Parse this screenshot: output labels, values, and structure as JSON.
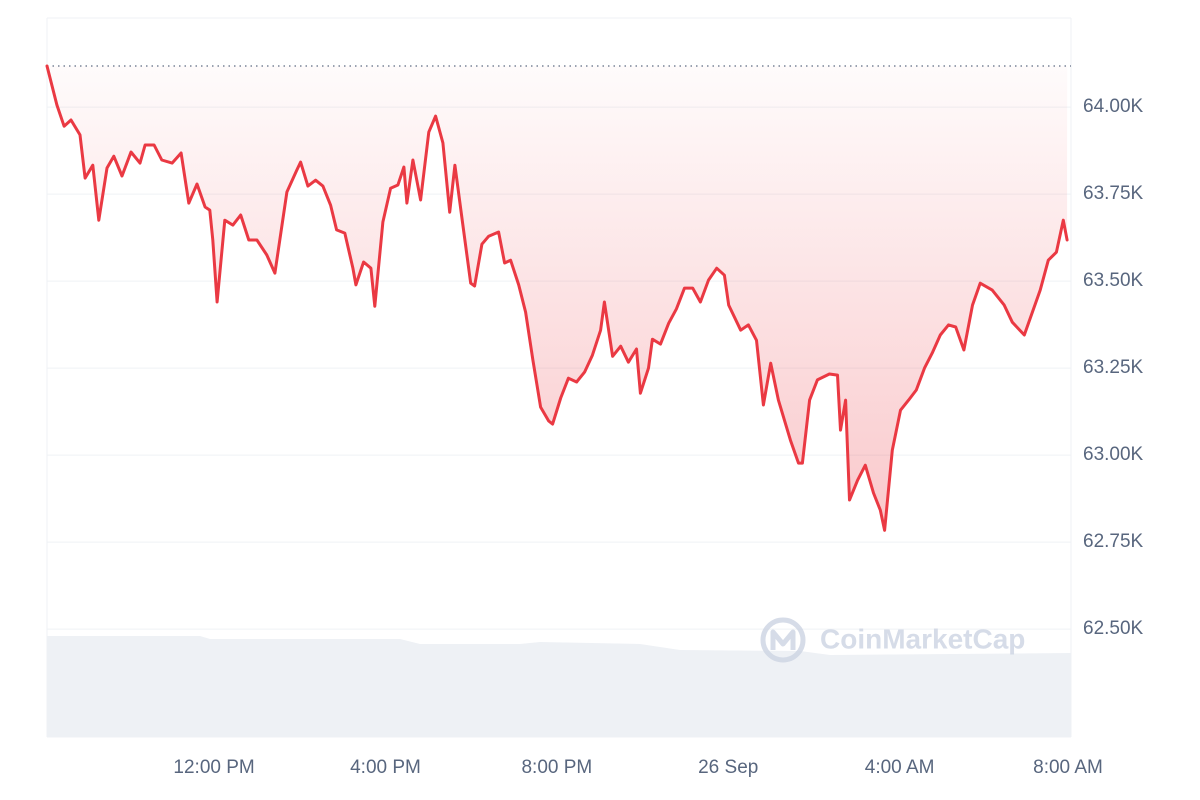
{
  "chart_data": {
    "type": "line",
    "color": "#ea3943",
    "grid": true,
    "watermark": "CoinMarketCap",
    "xlim": [
      8.1,
      32
    ],
    "ylim": [
      62190,
      64256
    ],
    "xticks": [
      {
        "value": 12,
        "label": "12:00 PM"
      },
      {
        "value": 16,
        "label": "4:00 PM"
      },
      {
        "value": 20,
        "label": "8:00 PM"
      },
      {
        "value": 24,
        "label": "26 Sep"
      },
      {
        "value": 28,
        "label": "4:00 AM"
      },
      {
        "value": 32,
        "label": "8:00 AM"
      }
    ],
    "yticks": [
      {
        "value": 64000,
        "label": "64.00K"
      },
      {
        "value": 63750,
        "label": "63.75K"
      },
      {
        "value": 63500,
        "label": "63.50K"
      },
      {
        "value": 63250,
        "label": "63.25K"
      },
      {
        "value": 63000,
        "label": "63.00K"
      },
      {
        "value": 62750,
        "label": "62.75K"
      },
      {
        "value": 62500,
        "label": "62.50K"
      }
    ],
    "x": [
      8.1,
      8.33,
      8.5,
      8.66,
      8.87,
      8.99,
      9.17,
      9.31,
      9.5,
      9.66,
      9.85,
      10.06,
      10.27,
      10.39,
      10.6,
      10.78,
      11.02,
      11.23,
      11.41,
      11.6,
      11.79,
      11.9,
      11.97,
      12.07,
      12.25,
      12.44,
      12.62,
      12.81,
      13.0,
      13.23,
      13.42,
      13.7,
      13.93,
      14.02,
      14.19,
      14.37,
      14.54,
      14.72,
      14.86,
      15.05,
      15.24,
      15.31,
      15.49,
      15.66,
      15.75,
      15.94,
      16.12,
      16.29,
      16.43,
      16.5,
      16.64,
      16.82,
      17.01,
      17.17,
      17.34,
      17.5,
      17.62,
      17.8,
      17.99,
      18.08,
      18.25,
      18.41,
      18.64,
      18.78,
      18.92,
      19.11,
      19.27,
      19.44,
      19.62,
      19.81,
      19.9,
      20.09,
      20.27,
      20.46,
      20.65,
      20.83,
      21.02,
      21.11,
      21.3,
      21.49,
      21.67,
      21.86,
      21.95,
      22.14,
      22.23,
      22.42,
      22.61,
      22.79,
      22.98,
      23.17,
      23.35,
      23.54,
      23.73,
      23.91,
      24.01,
      24.29,
      24.47,
      24.66,
      24.82,
      24.99,
      25.17,
      25.45,
      25.64,
      25.73,
      25.9,
      26.08,
      26.36,
      26.55,
      26.62,
      26.74,
      26.83,
      27.02,
      27.2,
      27.39,
      27.55,
      27.65,
      27.83,
      28.02,
      28.21,
      28.39,
      28.58,
      28.76,
      28.95,
      29.14,
      29.31,
      29.5,
      29.7,
      29.88,
      30.16,
      30.44,
      30.63,
      30.91,
      31.1,
      31.28,
      31.47,
      31.66,
      31.82,
      31.91
    ],
    "values": [
      64118,
      64006,
      63945,
      63963,
      63920,
      63796,
      63833,
      63675,
      63825,
      63859,
      63802,
      63871,
      63839,
      63891,
      63891,
      63848,
      63839,
      63868,
      63724,
      63779,
      63713,
      63704,
      63618,
      63440,
      63675,
      63661,
      63690,
      63618,
      63618,
      63575,
      63523,
      63756,
      63819,
      63842,
      63773,
      63790,
      63773,
      63718,
      63647,
      63638,
      63537,
      63489,
      63555,
      63537,
      63428,
      63670,
      63767,
      63776,
      63828,
      63724,
      63848,
      63733,
      63928,
      63974,
      63897,
      63698,
      63833,
      63667,
      63494,
      63486,
      63606,
      63629,
      63641,
      63552,
      63560,
      63489,
      63411,
      63273,
      63138,
      63098,
      63089,
      63164,
      63221,
      63210,
      63239,
      63287,
      63359,
      63440,
      63284,
      63313,
      63267,
      63305,
      63178,
      63250,
      63333,
      63319,
      63379,
      63420,
      63480,
      63480,
      63440,
      63503,
      63537,
      63517,
      63431,
      63359,
      63374,
      63330,
      63144,
      63264,
      63158,
      63043,
      62977,
      62977,
      63158,
      63216,
      63233,
      63230,
      63072,
      63158,
      62871,
      62928,
      62971,
      62891,
      62842,
      62784,
      63014,
      63129,
      63158,
      63187,
      63250,
      63293,
      63345,
      63374,
      63368,
      63302,
      63431,
      63494,
      63474,
      63431,
      63382,
      63345,
      63411,
      63474,
      63560,
      63583,
      63675,
      63618
    ]
  }
}
